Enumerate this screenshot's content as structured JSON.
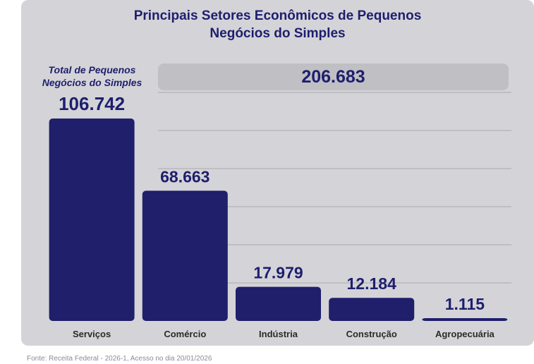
{
  "title_line1": "Principais Setores Econômicos de Pequenos",
  "title_line2": "Negócios do Simples",
  "total": {
    "label_line1": "Total de Pequenos",
    "label_line2": "Negócios do Simples",
    "value": "206.683"
  },
  "source": "Fonte: Receita Federal - 2026-1, Acesso no dia 20/01/2026",
  "colors": {
    "bar": "#1f1f6b",
    "text": "#1e1e6e",
    "grid": "#a9a9ae",
    "panel": "#d4d4d8"
  },
  "chart_data": {
    "type": "bar",
    "categories": [
      "Serviços",
      "Comércio",
      "Indústria",
      "Construção",
      "Agropecuária"
    ],
    "values": [
      106742,
      68663,
      17979,
      12184,
      1115
    ],
    "data_labels": [
      "106.742",
      "68.663",
      "17.979",
      "12.184",
      "1.115"
    ],
    "title": "Principais Setores Econômicos de Pequenos Negócios do Simples",
    "ylim": [
      0,
      106742
    ],
    "grid": true
  }
}
